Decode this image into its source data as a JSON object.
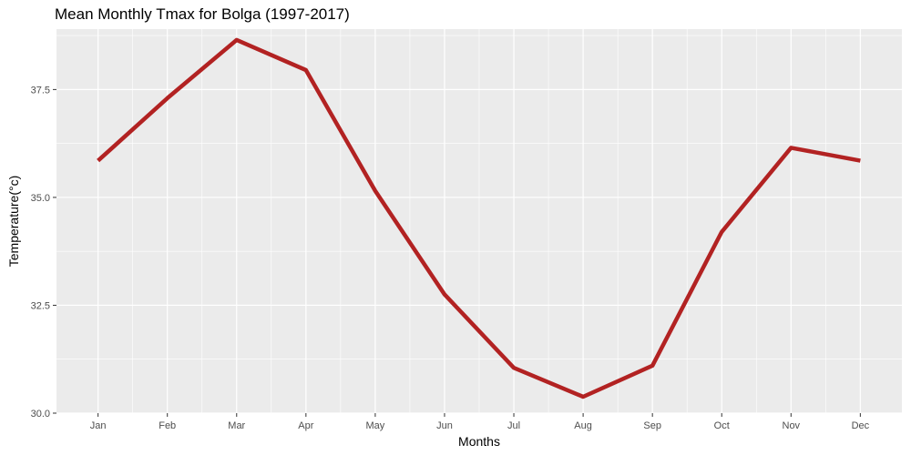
{
  "chart_data": {
    "type": "line",
    "title": "Mean Monthly Tmax for Bolga (1997-2017)",
    "xlabel": "Months",
    "ylabel": "Temperature(°c)",
    "categories": [
      "Jan",
      "Feb",
      "Mar",
      "Apr",
      "May",
      "Jun",
      "Jul",
      "Aug",
      "Sep",
      "Oct",
      "Nov",
      "Dec"
    ],
    "series": [
      {
        "values": [
          35.85,
          37.3,
          38.65,
          37.95,
          35.15,
          32.75,
          31.05,
          30.38,
          31.1,
          34.2,
          36.15,
          35.85
        ]
      }
    ],
    "ylim": [
      30.0,
      38.9
    ],
    "yticks": [
      "30.0",
      "32.5",
      "35.0",
      "37.5"
    ],
    "grid": true,
    "colors": {
      "line": "#b22222",
      "panel": "#ebebeb",
      "grid": "#ffffff"
    }
  }
}
